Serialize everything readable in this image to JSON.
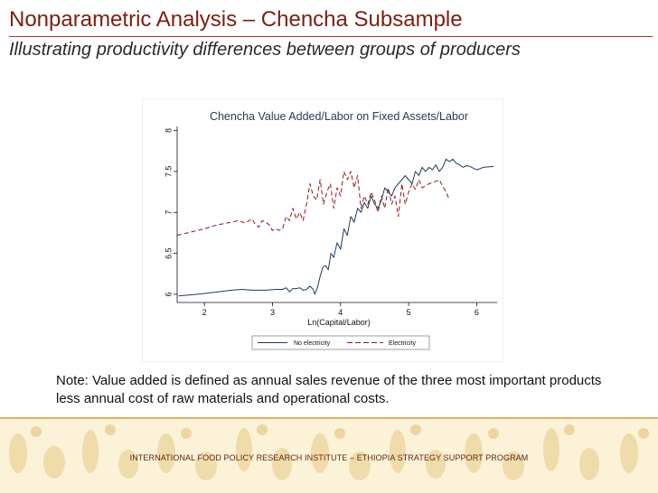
{
  "slide": {
    "title": "Nonparametric Analysis – Chencha Subsample",
    "subtitle": "Illustrating productivity differences between groups of producers",
    "note": "Note: Value added is defined as annual sales revenue of the three most important products less annual cost of raw materials and operational costs.",
    "footer": "INTERNATIONAL FOOD POLICY RESEARCH INSTITUTE – ETHIOPIA STRATEGY SUPPORT PROGRAM"
  },
  "colors": {
    "title": "#7a1f12",
    "no_electricity": "#1f3b57",
    "electricity": "#8b1a1a",
    "footer_band": "#fbf2d8"
  },
  "chart_data": {
    "type": "line",
    "title": "Chencha Value Added/Labor on Fixed Assets/Labor",
    "xlabel": "Ln(Capital/Labor)",
    "ylabel": "",
    "xlim": [
      1.6,
      6.3
    ],
    "ylim": [
      5.9,
      8.05
    ],
    "xticks": [
      2,
      3,
      4,
      5,
      6
    ],
    "yticks": [
      6,
      6.5,
      7,
      7.5,
      8
    ],
    "grid": false,
    "legend_position": "bottom",
    "series": [
      {
        "name": "No electricity",
        "style": "solid",
        "x": [
          1.62,
          1.9,
          2.2,
          2.4,
          2.55,
          2.7,
          2.9,
          3.05,
          3.15,
          3.2,
          3.25,
          3.3,
          3.35,
          3.4,
          3.45,
          3.5,
          3.55,
          3.6,
          3.62,
          3.66,
          3.7,
          3.74,
          3.78,
          3.82,
          3.86,
          3.9,
          3.95,
          4.0,
          4.05,
          4.1,
          4.15,
          4.2,
          4.25,
          4.3,
          4.35,
          4.4,
          4.45,
          4.5,
          4.55,
          4.6,
          4.65,
          4.7,
          4.75,
          4.8,
          4.85,
          4.9,
          4.95,
          5.0,
          5.05,
          5.1,
          5.15,
          5.2,
          5.25,
          5.3,
          5.35,
          5.4,
          5.45,
          5.5,
          5.55,
          5.6,
          5.65,
          5.7,
          5.75,
          5.8,
          5.85,
          5.9,
          6.0,
          6.1,
          6.25
        ],
        "y": [
          5.98,
          6.0,
          6.03,
          6.05,
          6.06,
          6.05,
          6.05,
          6.06,
          6.06,
          6.08,
          6.03,
          6.07,
          6.07,
          6.08,
          6.05,
          6.06,
          6.1,
          6.06,
          6.0,
          6.08,
          6.22,
          6.33,
          6.35,
          6.3,
          6.5,
          6.45,
          6.63,
          6.55,
          6.8,
          6.72,
          6.95,
          6.88,
          7.05,
          7.0,
          7.12,
          7.05,
          7.2,
          7.1,
          7.05,
          7.15,
          7.3,
          7.25,
          7.2,
          7.3,
          7.35,
          7.4,
          7.45,
          7.4,
          7.35,
          7.5,
          7.45,
          7.55,
          7.5,
          7.55,
          7.52,
          7.58,
          7.5,
          7.55,
          7.65,
          7.62,
          7.65,
          7.6,
          7.58,
          7.55,
          7.57,
          7.56,
          7.52,
          7.55,
          7.56
        ]
      },
      {
        "name": "Electricity",
        "style": "dashed",
        "x": [
          1.6,
          1.8,
          2.0,
          2.2,
          2.4,
          2.5,
          2.6,
          2.7,
          2.75,
          2.8,
          2.85,
          2.9,
          2.95,
          3.0,
          3.05,
          3.1,
          3.15,
          3.2,
          3.25,
          3.3,
          3.35,
          3.4,
          3.45,
          3.5,
          3.55,
          3.6,
          3.65,
          3.7,
          3.75,
          3.8,
          3.85,
          3.9,
          3.95,
          4.0,
          4.05,
          4.1,
          4.15,
          4.2,
          4.25,
          4.3,
          4.35,
          4.4,
          4.45,
          4.5,
          4.55,
          4.6,
          4.65,
          4.7,
          4.75,
          4.8,
          4.85,
          4.9,
          4.95,
          5.0,
          5.05,
          5.1,
          5.15,
          5.2,
          5.3,
          5.4,
          5.45,
          5.5,
          5.55,
          5.6
        ],
        "y": [
          6.72,
          6.76,
          6.8,
          6.85,
          6.88,
          6.9,
          6.87,
          6.92,
          6.85,
          6.82,
          6.9,
          6.88,
          6.85,
          6.78,
          6.8,
          6.78,
          6.8,
          6.95,
          6.9,
          7.05,
          6.92,
          7.0,
          6.9,
          7.1,
          7.35,
          7.2,
          7.15,
          7.4,
          7.1,
          7.25,
          7.35,
          7.05,
          7.3,
          7.2,
          7.5,
          7.4,
          7.5,
          7.3,
          7.45,
          7.05,
          7.2,
          7.1,
          7.25,
          7.15,
          7.0,
          7.2,
          7.05,
          7.3,
          7.1,
          7.2,
          6.95,
          7.35,
          7.1,
          7.25,
          7.35,
          7.28,
          7.4,
          7.3,
          7.35,
          7.38,
          7.4,
          7.32,
          7.25,
          7.15
        ]
      }
    ]
  }
}
